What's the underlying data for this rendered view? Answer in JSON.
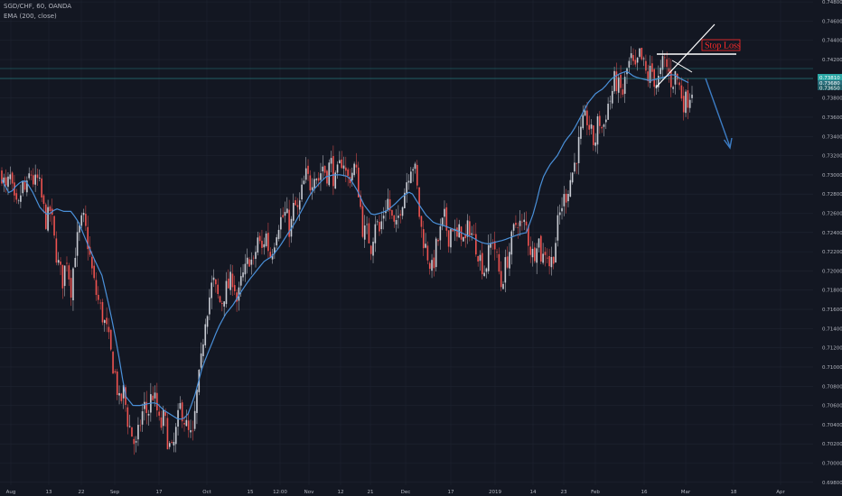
{
  "header": {
    "symbol_line": "SGD/CHF, 60, OANDA",
    "indicator_line": "EMA (200, close)"
  },
  "colors": {
    "background": "#131722",
    "grid": "#1f2431",
    "axis_text": "#b2b5be",
    "candle_up": "#c9ccd4",
    "candle_down": "#ef5350",
    "ema": "#4a90d9",
    "drawing_white": "#ffffff",
    "arrow": "#3c7cc4",
    "price_tag": "#2aa7a5",
    "stop_text": "#ff2a2a"
  },
  "annotations": {
    "stop_loss_label": "Stop Loss",
    "price_tag_1": "0.73810",
    "price_tag_2": "0.73680",
    "price_tag_3": "0.73650"
  },
  "chart_data": {
    "type": "candlestick",
    "title": "SGD/CHF, 60, OANDA",
    "indicator": "EMA (200, close)",
    "ylim": [
      0.6975,
      0.7485
    ],
    "y_ticks": [
      "0.74800",
      "0.74600",
      "0.74400",
      "0.74200",
      "0.74000",
      "0.73800",
      "0.73600",
      "0.73400",
      "0.73200",
      "0.73000",
      "0.72800",
      "0.72600",
      "0.72400",
      "0.72200",
      "0.72000",
      "0.71800",
      "0.71600",
      "0.71400",
      "0.71200",
      "0.71000",
      "0.70800",
      "0.70600",
      "0.70400",
      "0.70200",
      "0.70000",
      "0.69800"
    ],
    "x_ticks": [
      "Aug",
      "13",
      "22",
      "Sep",
      "17",
      "Oct",
      "15",
      "12:00",
      "Nov",
      "12",
      "21",
      "Dec",
      "17",
      "2019",
      "14",
      "23",
      "Feb",
      "16",
      "Mar",
      "18",
      "Apr"
    ],
    "grid": true,
    "price_path": [
      [
        0.7302,
        0.7283,
        0.7298,
        0.727,
        0.7262,
        0.729,
        0.728,
        0.7305,
        0.729
      ],
      [
        0.7295,
        0.727,
        0.725,
        0.7265,
        0.7228,
        0.7205,
        0.719,
        0.7215,
        0.718
      ],
      [
        0.722,
        0.724,
        0.7255,
        0.7235,
        0.7205,
        0.718,
        0.7165,
        0.715,
        0.7135
      ],
      [
        0.711,
        0.709,
        0.706,
        0.7075,
        0.7045,
        0.703,
        0.7015,
        0.704,
        0.706
      ],
      [
        0.705,
        0.7075,
        0.706,
        0.7035,
        0.705,
        0.702,
        0.701,
        0.7035,
        0.706
      ],
      [
        0.7045,
        0.703,
        0.7025,
        0.707,
        0.71,
        0.715,
        0.717,
        0.719,
        0.7175
      ],
      [
        0.7165,
        0.718,
        0.7185,
        0.7195,
        0.7165,
        0.719,
        0.72,
        0.7215,
        0.7205
      ],
      [
        0.7235,
        0.722,
        0.724,
        0.7215,
        0.723,
        0.725,
        0.7255,
        0.726,
        0.724
      ],
      [
        0.727,
        0.726,
        0.7285,
        0.73,
        0.729,
        0.7305,
        0.7295,
        0.731,
        0.73
      ],
      [
        0.7315,
        0.729,
        0.7305,
        0.732,
        0.7295,
        0.73,
        0.731,
        0.728,
        0.724
      ],
      [
        0.724,
        0.7225,
        0.7255,
        0.724,
        0.726,
        0.7275,
        0.7255,
        0.724,
        0.7265
      ],
      [
        0.728,
        0.73,
        0.7315,
        0.73,
        0.725,
        0.723,
        0.7215,
        0.72,
        0.7225
      ],
      [
        0.724,
        0.7255,
        0.7235,
        0.725,
        0.723,
        0.7245,
        0.7225,
        0.725,
        0.7235
      ],
      [
        0.7225,
        0.721,
        0.72,
        0.722,
        0.7235,
        0.721,
        0.7185,
        0.7205,
        0.722
      ],
      [
        0.724,
        0.7255,
        0.7245,
        0.725,
        0.7225,
        0.7215,
        0.724,
        0.721,
        0.7225
      ],
      [
        0.7205,
        0.722,
        0.725,
        0.727,
        0.728,
        0.7295,
        0.731,
        0.733,
        0.735
      ],
      [
        0.736,
        0.7345,
        0.733,
        0.736,
        0.7345,
        0.737,
        0.738,
        0.74,
        0.739
      ],
      [
        0.7385,
        0.741,
        0.742,
        0.7405,
        0.7425,
        0.7415,
        0.74,
        0.741,
        0.7395
      ],
      [
        0.74,
        0.742,
        0.741,
        0.7395,
        0.7405,
        0.739,
        0.7375,
        0.738,
        0.739
      ]
    ],
    "ema_path": [
      [
        0.7295,
        0.728,
        0.729,
        0.7295,
        0.7282,
        0.7265,
        0.7258,
        0.7265,
        0.7262
      ],
      [
        0.7262,
        0.725,
        0.723,
        0.7212,
        0.7195,
        0.716,
        0.712,
        0.707,
        0.706
      ],
      [
        0.706,
        0.7062,
        0.7063,
        0.7055,
        0.705,
        0.7045,
        0.7048,
        0.707,
        0.71
      ],
      [
        0.712,
        0.714,
        0.7155,
        0.7165,
        0.7178,
        0.719,
        0.72,
        0.721,
        0.7215
      ],
      [
        0.7225,
        0.7238,
        0.725,
        0.7265,
        0.728,
        0.729,
        0.7298,
        0.73,
        0.73
      ],
      [
        0.7298,
        0.7285,
        0.7268,
        0.7258,
        0.726,
        0.7263,
        0.727,
        0.7278,
        0.7283
      ],
      [
        0.727,
        0.7258,
        0.725,
        0.7248,
        0.7245,
        0.7242,
        0.7238,
        0.7235,
        0.723
      ],
      [
        0.7228,
        0.723,
        0.7232,
        0.7235,
        0.7238,
        0.724,
        0.7262,
        0.7295,
        0.731
      ],
      [
        0.732,
        0.7335,
        0.7345,
        0.736,
        0.7375,
        0.7385,
        0.739,
        0.74,
        0.7405
      ],
      [
        0.7408,
        0.7402,
        0.74,
        0.7398,
        0.74,
        0.7402,
        0.7405,
        0.74,
        0.7396
      ]
    ],
    "last_prices": [
      "0.73810",
      "0.73680",
      "0.73650"
    ]
  }
}
